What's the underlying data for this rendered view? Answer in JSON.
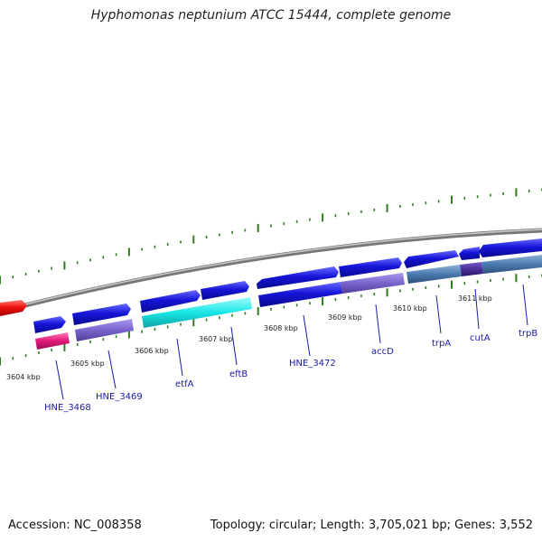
{
  "title": "Hyphomonas neptunium ATCC 15444, complete genome",
  "footer": {
    "accession": "Accession: NC_008358",
    "summary": "Topology: circular; Length: 3,705,021 bp; Genes: 3,552"
  },
  "scale_labels": [
    "3604 kbp",
    "3605 kbp",
    "3606 kbp",
    "3607 kbp",
    "3608 kbp",
    "3609 kbp",
    "3610 kbp",
    "3611 kbp"
  ],
  "gene_labels": [
    "HNE_3468",
    "HNE_3469",
    "etfA",
    "eftB",
    "HNE_3472",
    "accD",
    "trpA",
    "cutA",
    "trpB"
  ],
  "colors": {
    "backbone": "#8a8a8a",
    "tick": "#2e7d1e",
    "gene_arrow": "#1515d8",
    "upstream_gene": "#ee1111",
    "feature_magenta": "#e0187a",
    "feature_purple": "#7a64cc",
    "feature_cyan": "#18e6e6",
    "feature_steel": "#4a7ab0",
    "label": "#1a1aa6"
  }
}
